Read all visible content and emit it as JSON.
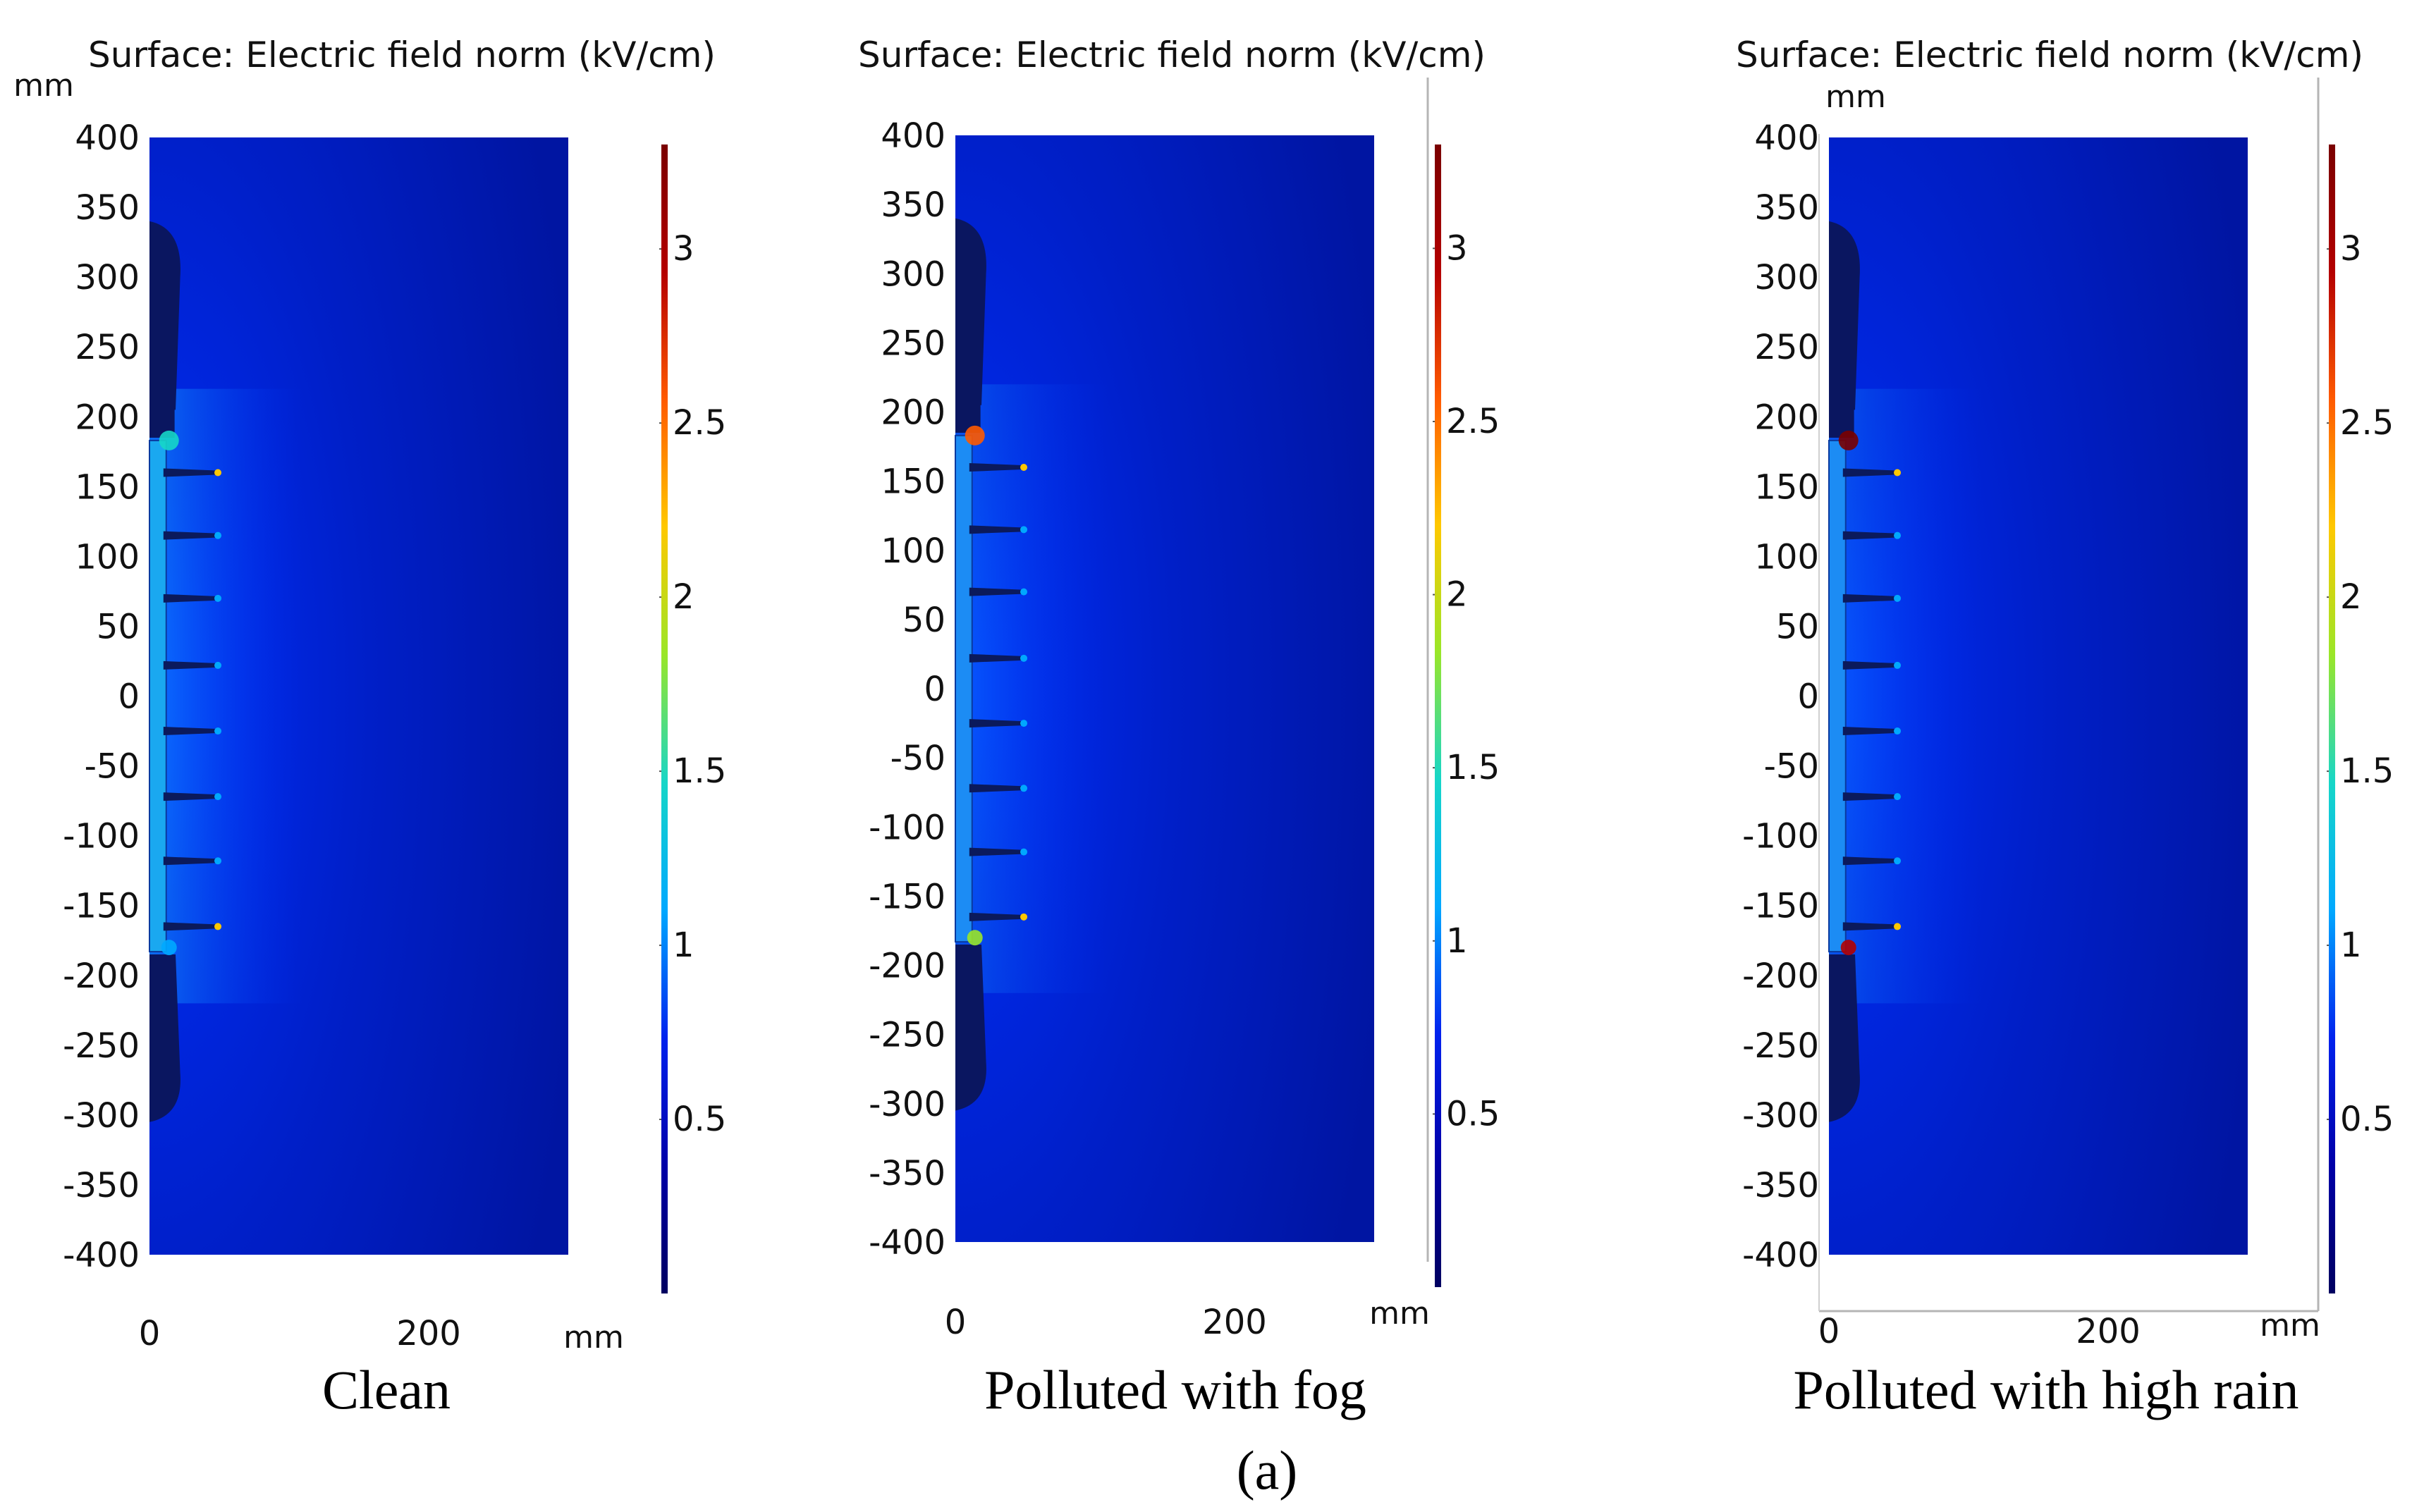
{
  "figure": {
    "panel_label": "(a)",
    "colormap": [
      "#000060",
      "#0000a8",
      "#0022ee",
      "#00a8ff",
      "#16d6c8",
      "#9ae628",
      "#ffc800",
      "#ff5a00",
      "#b40000",
      "#7a0000"
    ]
  },
  "chart_data": [
    {
      "type": "heatmap",
      "title": "Surface: Electric field norm (kV/cm)",
      "caption": "Clean",
      "x_unit": "mm",
      "y_unit": "mm",
      "xlim": [
        0,
        300
      ],
      "ylim": [
        -400,
        400
      ],
      "x_ticks": [
        "0",
        "200"
      ],
      "y_ticks": [
        "400",
        "350",
        "300",
        "250",
        "200",
        "150",
        "100",
        "50",
        "0",
        "-50",
        "-100",
        "-150",
        "-200",
        "-250",
        "-300",
        "-350",
        "-400"
      ],
      "colorbar": {
        "min": 0,
        "max": 3.3,
        "ticks": [
          "3",
          "2.5",
          "2",
          "1.5",
          "1",
          "0.5"
        ]
      },
      "sheds_y_mm": [
        160,
        115,
        70,
        22,
        -25,
        -72,
        -118,
        -165
      ],
      "field_level": "clean"
    },
    {
      "type": "heatmap",
      "title": "Surface: Electric field norm (kV/cm)",
      "caption": "Polluted with fog",
      "x_unit": "mm",
      "y_unit": "",
      "xlim": [
        0,
        300
      ],
      "ylim": [
        -400,
        400
      ],
      "x_ticks": [
        "0",
        "200"
      ],
      "y_ticks": [
        "400",
        "350",
        "300",
        "250",
        "200",
        "150",
        "100",
        "50",
        "0",
        "-50",
        "-100",
        "-150",
        "-200",
        "-250",
        "-300",
        "-350",
        "-400"
      ],
      "colorbar": {
        "min": 0,
        "max": 3.3,
        "ticks": [
          "3",
          "2.5",
          "2",
          "1.5",
          "1",
          "0.5"
        ]
      },
      "sheds_y_mm": [
        160,
        115,
        70,
        22,
        -25,
        -72,
        -118,
        -165
      ],
      "field_level": "fog"
    },
    {
      "type": "heatmap",
      "title": "Surface: Electric field norm (kV/cm)",
      "caption": "Polluted with high rain",
      "x_unit": "mm",
      "y_unit": "mm",
      "xlim": [
        0,
        300
      ],
      "ylim": [
        -400,
        400
      ],
      "x_ticks": [
        "0",
        "200"
      ],
      "y_ticks": [
        "400",
        "350",
        "300",
        "250",
        "200",
        "150",
        "100",
        "50",
        "0",
        "-50",
        "-100",
        "-150",
        "-200",
        "-250",
        "-300",
        "-350",
        "-400"
      ],
      "colorbar": {
        "min": 0,
        "max": 3.3,
        "ticks": [
          "3",
          "2.5",
          "2",
          "1.5",
          "1",
          "0.5"
        ]
      },
      "sheds_y_mm": [
        160,
        115,
        70,
        22,
        -25,
        -72,
        -118,
        -165
      ],
      "field_level": "rain"
    }
  ]
}
